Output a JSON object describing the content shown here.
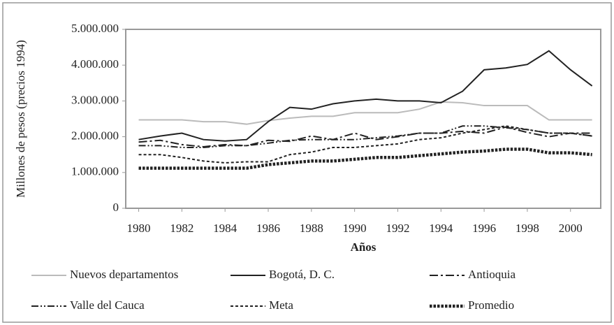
{
  "chart_data": {
    "type": "line",
    "xlabel": "Años",
    "ylabel": "Millones de pesos (precios 1994)",
    "x": [
      1980,
      1981,
      1982,
      1983,
      1984,
      1985,
      1986,
      1987,
      1988,
      1989,
      1990,
      1991,
      1992,
      1993,
      1994,
      1995,
      1996,
      1997,
      1998,
      1999,
      2000,
      2001
    ],
    "xlim": [
      1979.4,
      2001.4
    ],
    "xticks": [
      1980,
      1982,
      1984,
      1986,
      1988,
      1990,
      1992,
      1994,
      1996,
      1998,
      2000
    ],
    "ylim": [
      0,
      5000000
    ],
    "yticks": [
      0,
      {
        "value": 1000000,
        "label": "1.000.000"
      },
      {
        "value": 2000000,
        "label": "2.000.000"
      },
      {
        "value": 3000000,
        "label": "3.000.000"
      },
      {
        "value": 4000000,
        "label": "4.000.000"
      },
      {
        "value": 5000000,
        "label": "5.000.000"
      }
    ],
    "series": [
      {
        "name": "Nuevos departamentos",
        "color": "#bbbbbb",
        "linestyle": "solid",
        "values": [
          2470000,
          2470000,
          2470000,
          2420000,
          2420000,
          2350000,
          2450000,
          2520000,
          2570000,
          2570000,
          2670000,
          2670000,
          2670000,
          2770000,
          2970000,
          2950000,
          2870000,
          2870000,
          2870000,
          2470000,
          2470000,
          2470000
        ]
      },
      {
        "name": "Bogotá, D. C.",
        "color": "#222222",
        "linestyle": "solid",
        "values": [
          1920000,
          2020000,
          2100000,
          1920000,
          1880000,
          1920000,
          2420000,
          2820000,
          2770000,
          2920000,
          3000000,
          3050000,
          3000000,
          3000000,
          2950000,
          3270000,
          3870000,
          3920000,
          4020000,
          4400000,
          3870000,
          3420000
        ]
      },
      {
        "name": "Antioquia",
        "color": "#222222",
        "linestyle": "dashdot",
        "values": [
          1850000,
          1900000,
          1780000,
          1720000,
          1780000,
          1750000,
          1900000,
          1870000,
          2020000,
          1920000,
          2100000,
          1920000,
          2000000,
          2100000,
          2100000,
          2150000,
          2100000,
          2270000,
          2120000,
          2000000,
          2100000,
          2100000
        ]
      },
      {
        "name": "Valle del Cauca",
        "color": "#222222",
        "linestyle": "dashdotdot",
        "values": [
          1750000,
          1750000,
          1700000,
          1700000,
          1750000,
          1750000,
          1820000,
          1900000,
          1920000,
          1920000,
          1920000,
          1970000,
          2020000,
          2100000,
          2100000,
          2300000,
          2300000,
          2250000,
          2200000,
          2100000,
          2100000,
          2020000
        ]
      },
      {
        "name": "Meta",
        "color": "#222222",
        "linestyle": "dashed",
        "values": [
          1500000,
          1500000,
          1420000,
          1320000,
          1270000,
          1300000,
          1300000,
          1500000,
          1570000,
          1700000,
          1700000,
          1750000,
          1800000,
          1920000,
          1970000,
          2100000,
          2200000,
          2300000,
          2200000,
          2100000,
          2100000,
          2020000
        ]
      },
      {
        "name": "Promedio",
        "color": "#222222",
        "linestyle": "dotted",
        "values": [
          1120000,
          1120000,
          1120000,
          1120000,
          1120000,
          1120000,
          1220000,
          1270000,
          1320000,
          1320000,
          1370000,
          1420000,
          1420000,
          1470000,
          1520000,
          1570000,
          1600000,
          1650000,
          1650000,
          1550000,
          1550000,
          1500000
        ]
      }
    ]
  }
}
